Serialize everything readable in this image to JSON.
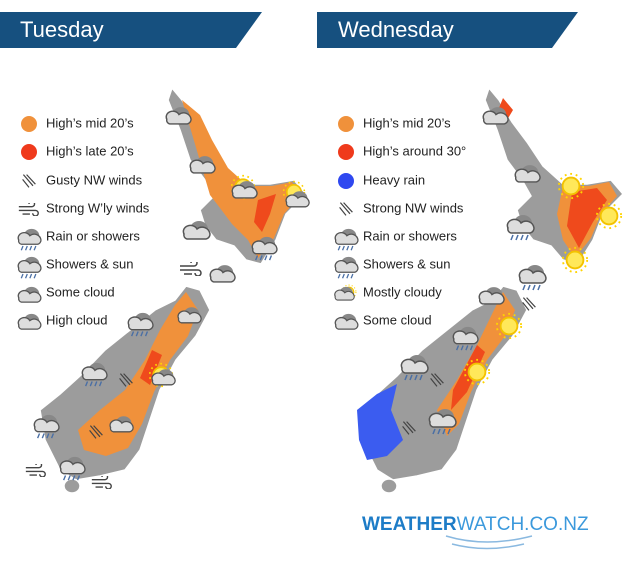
{
  "panels": [
    {
      "title": "Tuesday",
      "legend": [
        "High’s mid 20’s",
        "High’s late 20’s",
        "Gusty NW winds",
        "Strong W’ly winds",
        "Rain or showers",
        "Showers & sun",
        "Some cloud",
        "High cloud"
      ]
    },
    {
      "title": "Wednesday",
      "legend": [
        "High’s mid 20’s",
        "High’s around 30°",
        "Heavy rain",
        "Strong NW winds",
        "Rain or showers",
        "Showers & sun",
        "Mostly cloudy",
        "Some cloud"
      ]
    }
  ],
  "logo": {
    "bold": "WEATHER",
    "rest": "WATCH.CO.NZ"
  }
}
